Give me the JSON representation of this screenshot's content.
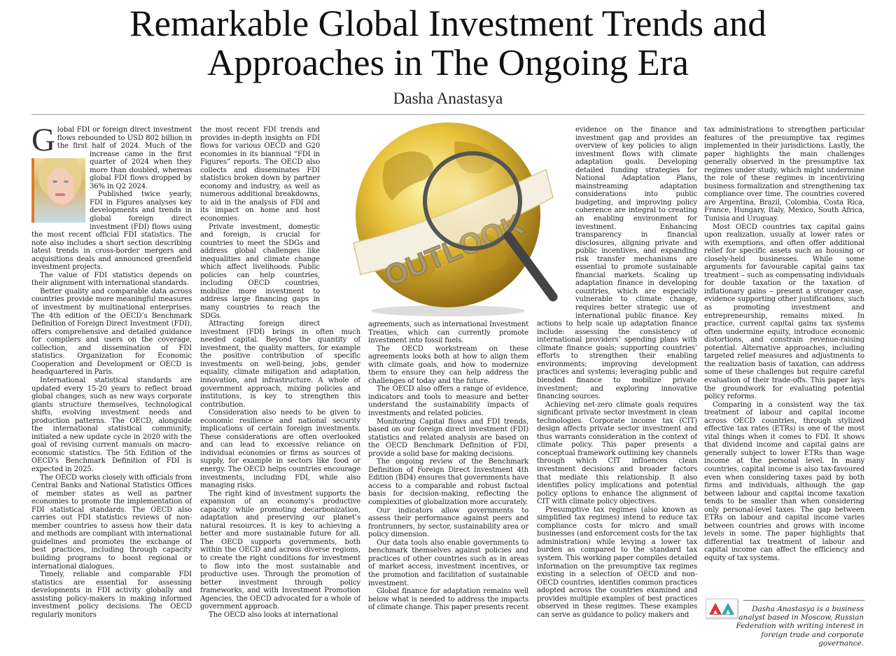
{
  "article": {
    "title_line1": "Remarkable Global Investment Trends and",
    "title_line2": "Approaches in The Ongoing Era",
    "author": "Dasha Anastasya",
    "drop_cap": "G",
    "image_text": "OUTLOOK",
    "columns": [
      [
        {
          "cont": false,
          "dropcap": true,
          "text": "lobal FDI or foreign direct investment flows rebounded to USD 802 billion in the first half of 2024. Much of the increase came in the first quarter of 2024 when they more than doubled, whereas global FDI flows dropped by 36% in Q2 2024."
        },
        {
          "cont": false,
          "text": "Published twice yearly, FDI in Figures analyses key developments and trends in global foreign direct investment (FDI) flows using the most recent official FDI statistics. The note also includes a short section describing latest trends in cross-border mergers and acquisitions deals and announced greenfield investment projects."
        },
        {
          "cont": false,
          "text": "The value of FDI statistics depends on their alignment with international standards."
        },
        {
          "cont": false,
          "text": "Better quality and comparable data across countries provide more meaningful measures of investment by multinational enterprises. The 4th edition of the OECD’s Benchmark Definition of Foreign Direct Investment (FDI), offers comprehensive and detailed guidance for compilers and users on the coverage, collection, and dissemination of FDI statistics. Organization for Economic Cooperation and Development or OECD is headquartered in Paris."
        },
        {
          "cont": false,
          "text": "International statistical standards are updated every 15-20 years to reflect broad global changes, such as new ways corporate giants structure themselves, technological shifts, evolving investment needs and production patterns. The OECD, alongside the international statistical community, initiated a new update cycle in 2020 with the goal of revising current manuals on macro-economic statistics. The 5th Edition of the OECD’s Benchmark Definition of FDI is expected in 2025."
        },
        {
          "cont": false,
          "text": "The OECD works closely with officials from Central Banks and National Statistics Offices of member states as well as partner economies to promote the implementation of FDI statistical standards. The OECD also carries out FDI statistics reviews of non-member countries to assess how their data and methods are compliant with international guidelines and promotes the exchange of best practices, including through capacity building programs to boost regional or international dialogues."
        },
        {
          "cont": false,
          "text": "Timely, reliable and comparable FDI statistics are essential for assessing developments in FDI activity globally and assisting policy-makers in making informed investment policy decisions. The OECD regularly monitors"
        }
      ],
      [
        {
          "cont": true,
          "text": "the most recent FDI trends and provides in-depth insights on FDI flows for various OECD and G20 economies in its biannual “FDI in Figures” reports. The OECD also collects and disseminates FDI statistics broken down by partner economy and industry, as well as numerous additional breakdowns, to aid in the analysis of FDI and its impact on home and host economies."
        },
        {
          "cont": false,
          "text": "Private investment, domestic and foreign, is crucial for countries to meet the SDGs and address global challenges like inequalities and climate change which affect livelihoods. Public policies can help countries, including OECD countries, mobilize more investment to address large financing gaps in many countries to reach the SDGs."
        },
        {
          "cont": false,
          "text": "Attracting foreign direct investment (FDI) brings in often much needed capital. Beyond the quantity of investment, the quality matters, for example the positive contribution of specific investments on well-being, jobs, gender equality, climate mitigation and adaptation, innovation, and infrastructure. A whole of government approach, mixing policies and institutions, is key to strengthen this contribution."
        },
        {
          "cont": false,
          "text": "Consideration also needs to be given to economic resilience and national security implications of certain foreign investments. These considerations are often overlooked and can lead to excessive reliance on individual economies or firms as sources of supply, for example in sectors like food or energy. The OECD helps countries encourage investments, including FDI, while also managing risks."
        },
        {
          "cont": false,
          "text": "The right kind of investment supports the expansion of an economy’s productive capacity while promoting decarbonization, adaptation and preserving our planet’s natural resources. It is key to achieving a better and more sustainable future for all. The OECD supports governments, both within the OECD and across diverse regions, to create the right conditions for investment to flow into the most sustainable and productive uses. Through the promotion of better investment through policy frameworks, and with Investment Promotion Agencies, the OECD advocated for a whole of government approach."
        },
        {
          "cont": false,
          "text": "The OECD also looks at international"
        }
      ],
      [
        {
          "cont": true,
          "text": "agreements, such as international Investment Treaties, which can currently promote investment into fossil fuels."
        },
        {
          "cont": false,
          "text": "The OECD workstream on these agreements looks both at how to align them with climate goals, and how to modernize them to ensure they can help address the challenges of today and the future."
        },
        {
          "cont": false,
          "text": "The OECD also offers a range of evidence, indicators and tools to measure and better understand the sustainability impacts of investments and related policies."
        },
        {
          "cont": false,
          "text": "Monitoring Capital flows and FDI trends, based on our foreign direct investment (FDI) statistics and related analysis are based on the OECD Benchmark Definition of FDI, provide a solid base for making decisions."
        },
        {
          "cont": false,
          "text": "The ongoing review of the Benchmark Definition of Foreign Direct Investment 4th Edition (BD4) ensures that governments have access to a comparable and robust factual basis for decision-making, reflecting the complexities of globalization more accurately."
        },
        {
          "cont": false,
          "text": "Our indicators allow governments to assess their performance against peers and frontrunners, by sector, sustainability area or policy dimension."
        },
        {
          "cont": false,
          "text": "Our data tools also enable governments to benchmark themselves against policies and practices of other countries such as in areas of market access, investment incentives, or the promotion and facilitation of sustainable investment."
        },
        {
          "cont": false,
          "text": "Global finance for adaptation remains well below what is needed to address the impacts of climate change. This paper presents recent"
        }
      ],
      [
        {
          "cont": true,
          "text": "evidence on the finance and investment gap and provides an overview of key policies to align investment flows with climate adaptation goals. Developing detailed funding strategies for National Adaptation Plans, mainstreaming adaptation considerations into public budgeting, and improving policy coherence are integral to creating an enabling environment for investment. Enhancing transparency in financial disclosures, aligning private and public incentives, and expanding risk transfer mechanisms are essential to promote sustainable financial markets. Scaling up adaptation finance in developing countries, which are especially vulnerable to climate change, requires better strategic use of international public finance. Key actions to help scale up adaptation finance include: assessing the consistency of international providers’ spending plans with climate finance goals; supporting countries’ efforts to strengthen their enabling environments; improving development practices and systems; leveraging public and blended finance to mobilize private investment; and exploring innovative financing sources."
        },
        {
          "cont": false,
          "text": "Achieving net-zero climate goals requires significant private sector investment in clean technologies. Corporate income tax (CIT) design affects private sector investment and thus warrants consideration in the context of climate policy. This paper presents a conceptual framework outlining key channels through which CIT influences clean investment decisions and broader factors that mediate this relationship. It also identifies policy implications and potential policy options to enhance the alignment of CIT with climate policy objectives."
        },
        {
          "cont": false,
          "text": "Presumptive tax regimes (also known as simplified tax regimes) intend to reduce tax compliance costs for micro and small businesses (and enforcement costs for the tax administration) while levying a lower tax burden as compared to the standard tax system. This working paper compiles detailed information on the presumptive tax regimes existing in a selection of OECD and non-OECD countries, identifies common practices adopted across the countries examined and provides multiple examples of best practices observed in these regimes. These examples can serve as guidance to policy makers and"
        }
      ],
      [
        {
          "cont": true,
          "text": "tax administrations to strengthen particular features of the presumptive tax regimes implemented in their jurisdictions. Lastly, the paper highlights the main challenges generally observed in the presumptive tax regimes under study, which might undermine the role of these regimes in incentivizing business formalization and strengthening tax compliance over time. The countries covered are Argentina, Brazil, Colombia, Costa Rica, France, Hungary, Italy, Mexico, South Africa, Tunisia and Uruguay."
        },
        {
          "cont": false,
          "text": "Most OECD countries tax capital gains upon realization, usually at lower rates or with exemptions, and often offer additional relief for specific assets such as housing or closely-held businesses. While some arguments for favourable capital gains tax treatment – such as compensating individuals for double taxation or the taxation of inflationary gains – present a stronger case, evidence supporting other justifications, such as promoting investment and entrepreneurship, remains mixed. In practice, current capital gains tax systems often undermine equity, introduce economic distortions, and constrain revenue-raising potential. Alternative approaches, including targeted relief measures and adjustments to the realization basis of taxation, can address some of these challenges but require careful evaluation of their trade-offs. This paper lays the groundwork for evaluating potential policy reforms."
        },
        {
          "cont": false,
          "text": "Comparing in a consistent way the tax treatment of labour and capital income across OECD countries, through stylized effective tax rates (ETRs) is one of the most vital things when it comes to FDI. It shows that dividend income and capital gains are generally subject to lower ETRs than wage income at the personal level. In many countries, capital income is also tax-favoured even when considering taxes paid by both firms and individuals, although the gap between labour and capital income taxation tends to be smaller than when considering only personal-level taxes. The gap between ETRs on labour and capital income varies between countries and grows with income levels in some. The paper highlights that differential tax treatment of labour and capital income can affect the efficiency and equity of tax systems."
        }
      ]
    ],
    "bio": "Dasha Anastasya is a business analyst based in Moscow, Russian Federation with writing interest in foreign trade and corporate governance."
  },
  "colors": {
    "logo_red": "#e0303a",
    "logo_teal": "#3aa8a8",
    "photo_accent": "#e07a2a",
    "globe_gold": "#e8c23a"
  }
}
